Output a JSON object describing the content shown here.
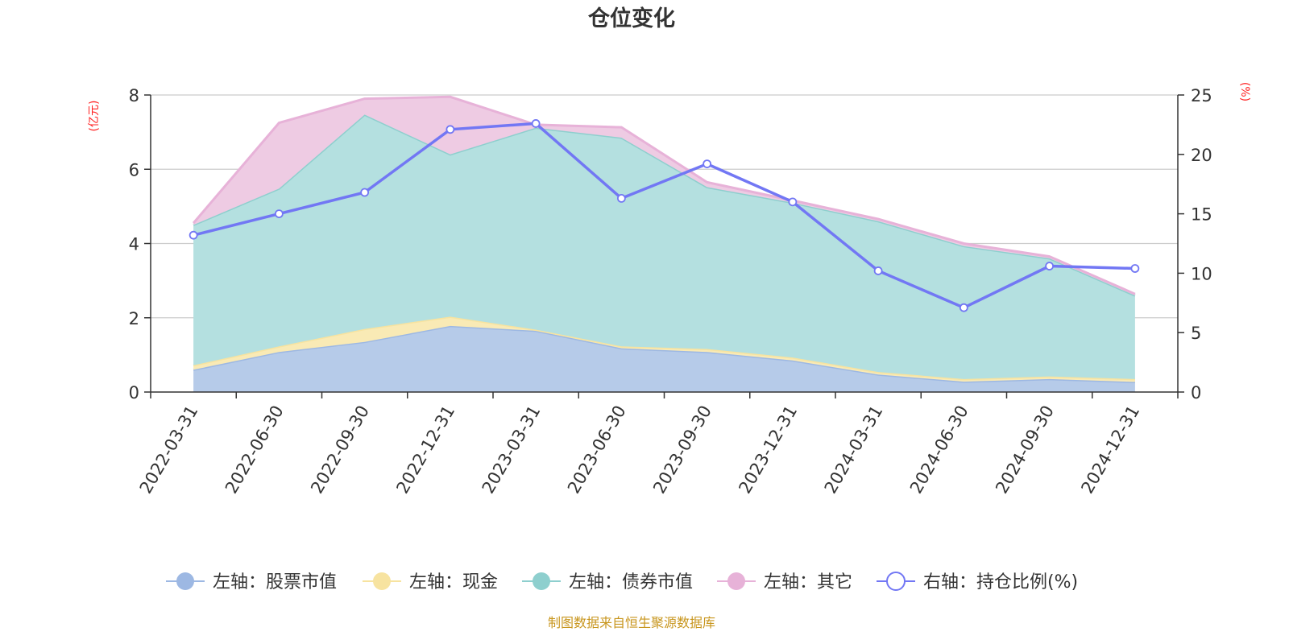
{
  "chart_data": {
    "type": "area",
    "title": "仓位变化",
    "left_axis_unit": "(亿元)",
    "right_axis_unit": "(%)",
    "categories": [
      "2022-03-31",
      "2022-06-30",
      "2022-09-30",
      "2022-12-31",
      "2023-03-31",
      "2023-06-30",
      "2023-09-30",
      "2023-12-31",
      "2024-03-31",
      "2024-06-30",
      "2024-09-30",
      "2024-12-31"
    ],
    "left_ylim": [
      0,
      8
    ],
    "left_ticks": [
      0,
      2,
      4,
      6,
      8
    ],
    "right_ylim": [
      0,
      25
    ],
    "right_ticks": [
      0,
      5,
      10,
      15,
      20,
      25
    ],
    "stacked": true,
    "series": [
      {
        "name": "左轴：股票市值",
        "axis": "left",
        "color": "#9db8e3",
        "fill": "#b6cbe9",
        "values": [
          0.6,
          1.08,
          1.35,
          1.78,
          1.65,
          1.18,
          1.08,
          0.85,
          0.47,
          0.28,
          0.35,
          0.27
        ]
      },
      {
        "name": "左轴：现金",
        "axis": "left",
        "color": "#f7e3a0",
        "fill": "#f9eab5",
        "values": [
          0.12,
          0.15,
          0.35,
          0.25,
          0.03,
          0.05,
          0.08,
          0.08,
          0.07,
          0.07,
          0.07,
          0.08
        ]
      },
      {
        "name": "左轴：债券市值",
        "axis": "left",
        "color": "#8ecfce",
        "fill": "#b4e0e0",
        "values": [
          3.78,
          4.25,
          5.77,
          4.37,
          5.44,
          5.62,
          4.36,
          4.17,
          4.06,
          3.58,
          3.18,
          2.25
        ]
      },
      {
        "name": "左轴：其它",
        "axis": "left",
        "color": "#e7b2d8",
        "fill": "#eecbe3",
        "values": [
          0.05,
          1.77,
          0.43,
          1.55,
          0.08,
          0.28,
          0.13,
          0.06,
          0.06,
          0.07,
          0.05,
          0.04
        ]
      },
      {
        "name": "右轴：持仓比例(%)",
        "axis": "right",
        "type": "line",
        "color": "#7277f4",
        "values": [
          13.2,
          15.0,
          16.8,
          22.1,
          22.6,
          16.3,
          19.2,
          16.0,
          10.2,
          7.1,
          10.6,
          10.4
        ]
      }
    ],
    "legend_position": "bottom"
  },
  "source_note": "制图数据来自恒生聚源数据库"
}
